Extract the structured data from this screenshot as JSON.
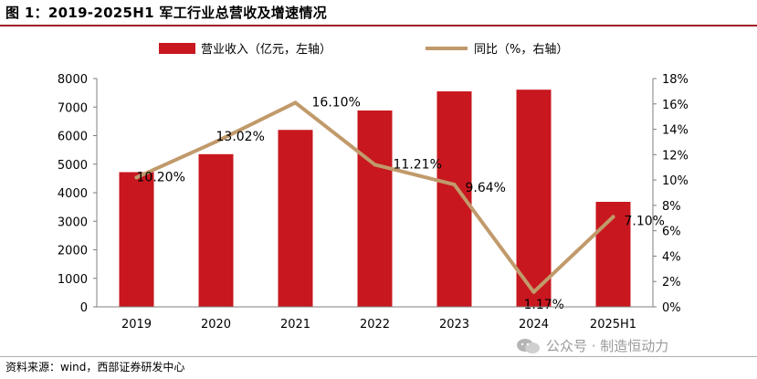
{
  "figure": {
    "title": "图 1：2019-2025H1 军工行业总营收及增速情况",
    "source": "资料来源：wind，西部证券研发中心",
    "watermark": "公众号 · 制造恒动力"
  },
  "colors": {
    "bar": "#c8171f",
    "line": "#c19a6b",
    "accent_rule": "#9e1b24",
    "axis": "#7f7f7f"
  },
  "chart_data": {
    "type": "bar",
    "categories": [
      "2019",
      "2020",
      "2021",
      "2022",
      "2023",
      "2024",
      "2025H1"
    ],
    "series": [
      {
        "name": "营业收入（亿元，左轴）",
        "type": "bar",
        "axis": "left",
        "values": [
          4720,
          5350,
          6200,
          6880,
          7550,
          7610,
          3680
        ]
      },
      {
        "name": "同比（%，右轴）",
        "type": "line",
        "axis": "right",
        "values": [
          10.2,
          13.02,
          16.1,
          11.21,
          9.64,
          1.17,
          7.1
        ],
        "labels": [
          "10.20%",
          "13.02%",
          "16.10%",
          "11.21%",
          "9.64%",
          "1.17%",
          "7.10%"
        ]
      }
    ],
    "y_left": {
      "lim": [
        0,
        8000
      ],
      "ticks": [
        0,
        1000,
        2000,
        3000,
        4000,
        5000,
        6000,
        7000,
        8000
      ]
    },
    "y_right": {
      "lim": [
        0,
        18
      ],
      "ticks": [
        "0%",
        "2%",
        "4%",
        "6%",
        "8%",
        "10%",
        "12%",
        "14%",
        "16%",
        "18%"
      ]
    },
    "legend_position": "top-center",
    "grid": false
  }
}
